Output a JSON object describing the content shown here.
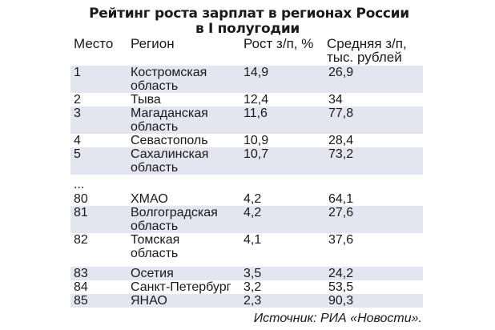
{
  "title": {
    "line1": "Рейтинг роста зарплат в регионах России",
    "line2": "в I полугодии"
  },
  "columns": {
    "place": "Место",
    "region": "Регион",
    "growth": "Рост з/п, %",
    "avg_line1": "Средняя з/п,",
    "avg_line2": "тыс. рублей"
  },
  "rows": [
    {
      "place": "1",
      "region": [
        "Костромская",
        "область"
      ],
      "growth": "14,9",
      "avg": "26,9"
    },
    {
      "place": "2",
      "region": [
        "Тыва"
      ],
      "growth": "12,4",
      "avg": "34"
    },
    {
      "place": "3",
      "region": [
        "Магаданская",
        "область"
      ],
      "growth": "11,6",
      "avg": "77,8"
    },
    {
      "place": "4",
      "region": [
        "Севастополь"
      ],
      "growth": "10,9",
      "avg": "28,4"
    },
    {
      "place": "5",
      "region": [
        "Сахалинская",
        "область"
      ],
      "growth": "10,7",
      "avg": "73,2"
    },
    {
      "place": "80",
      "region": [
        "ХМАО"
      ],
      "growth": "4,2",
      "avg": "64,1"
    },
    {
      "place": "81",
      "region": [
        "Волгоградская",
        "область"
      ],
      "growth": "4,2",
      "avg": "27,6"
    },
    {
      "place": "82",
      "region": [
        "Томская",
        "область"
      ],
      "growth": "4,1",
      "avg": "37,6"
    },
    {
      "place": "83",
      "region": [
        "Осетия"
      ],
      "growth": "3,5",
      "avg": "24,2"
    },
    {
      "place": "84",
      "region": [
        "Санкт-Петербург"
      ],
      "growth": "3,2",
      "avg": "53,5"
    },
    {
      "place": "85",
      "region": [
        "ЯНАО"
      ],
      "growth": "2,3",
      "avg": "90,3"
    }
  ],
  "ellipsis": "...",
  "source": "Источник: РИА «Новости».",
  "colors": {
    "text": "#1a1a1a",
    "stripe": "#e3e5f0",
    "background": "#ffffff"
  }
}
